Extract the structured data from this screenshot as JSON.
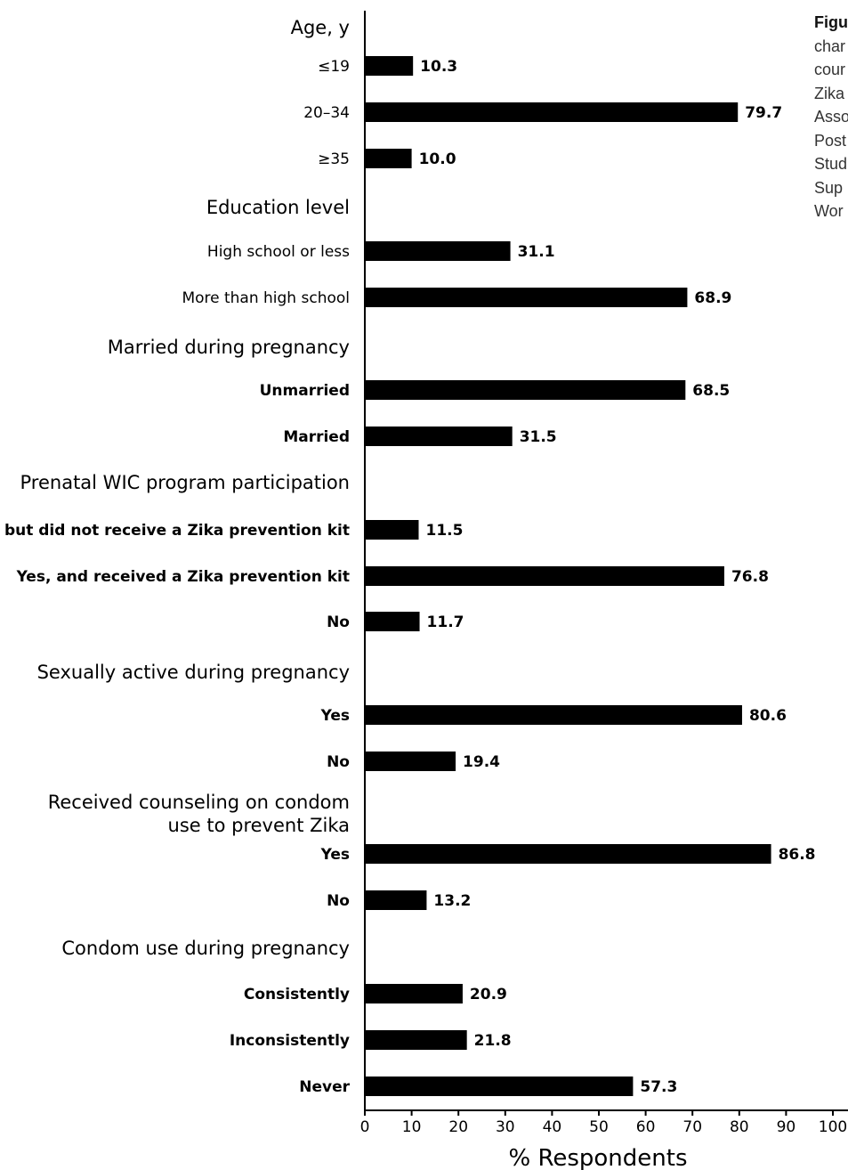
{
  "caption": {
    "lines": [
      "Figu",
      "char",
      "cour",
      "Zika",
      "Asso",
      "Post",
      "Stud",
      "Sup",
      "Wor"
    ]
  },
  "chart_data": {
    "type": "bar",
    "orientation": "horizontal",
    "xlabel": "% Respondents",
    "xlim": [
      0,
      100
    ],
    "xticks": [
      "0",
      "10",
      "20",
      "30",
      "40",
      "50",
      "60",
      "70",
      "80",
      "90",
      "100"
    ],
    "groups": [
      {
        "label": "Age, y",
        "items": [
          {
            "label": "≤19",
            "value": 10.3,
            "value_text": "10.3"
          },
          {
            "label": "20–34",
            "value": 79.7,
            "value_text": "79.7"
          },
          {
            "label": "≥35",
            "value": 10.0,
            "value_text": "10.0"
          }
        ]
      },
      {
        "label": "Education level",
        "items": [
          {
            "label": "High school or less",
            "value": 31.1,
            "value_text": "31.1"
          },
          {
            "label": "More than high school",
            "value": 68.9,
            "value_text": "68.9"
          }
        ]
      },
      {
        "label": "Married during pregnancy",
        "items": [
          {
            "label": "Unmarried",
            "value": 68.5,
            "value_text": "68.5"
          },
          {
            "label": "Married",
            "value": 31.5,
            "value_text": "31.5"
          }
        ]
      },
      {
        "label": "Prenatal WIC program participation",
        "items": [
          {
            "label": "Yes, but did not receive a Zika prevention kit",
            "value": 11.5,
            "value_text": "11.5"
          },
          {
            "label": "Yes, and received a Zika prevention kit",
            "value": 76.8,
            "value_text": "76.8"
          },
          {
            "label": "No",
            "value": 11.7,
            "value_text": "11.7"
          }
        ]
      },
      {
        "label": "Sexually active during pregnancy",
        "items": [
          {
            "label": "Yes",
            "value": 80.6,
            "value_text": "80.6"
          },
          {
            "label": "No",
            "value": 19.4,
            "value_text": "19.4"
          }
        ]
      },
      {
        "label": [
          "Received counseling on condom",
          "use to prevent Zika"
        ],
        "items": [
          {
            "label": "Yes",
            "value": 86.8,
            "value_text": "86.8"
          },
          {
            "label": "No",
            "value": 13.2,
            "value_text": "13.2"
          }
        ]
      },
      {
        "label": "Condom use during pregnancy",
        "items": [
          {
            "label": "Consistently",
            "value": 20.9,
            "value_text": "20.9"
          },
          {
            "label": "Inconsistently",
            "value": 21.8,
            "value_text": "21.8"
          },
          {
            "label": "Never",
            "value": 57.3,
            "value_text": "57.3"
          }
        ]
      }
    ]
  }
}
